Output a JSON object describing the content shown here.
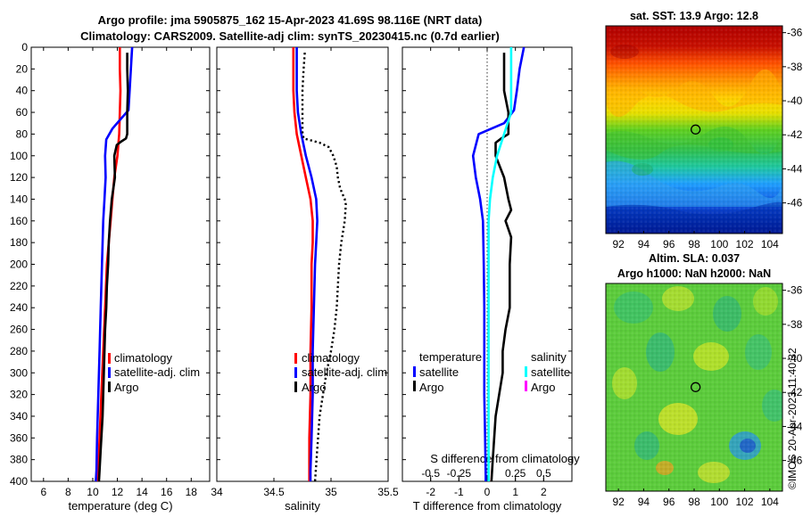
{
  "figure": {
    "title_line1": "Argo profile: jma 5905875_162 15-Apr-2023 41.69S 98.116E (NRT data)",
    "title_line2": "Climatology: CARS2009. Satellite-adj clim: synTS_20230415.nc (0.7d earlier)",
    "credit": "©IMOS 20-Apr-2023 11:40:32"
  },
  "chart_data": [
    {
      "id": "temperature",
      "type": "line",
      "xlabel": "temperature (deg C)",
      "ylabel": "",
      "xlim": [
        5,
        19.5
      ],
      "ylim": [
        400,
        0
      ],
      "xticks": [
        6,
        8,
        10,
        12,
        14,
        16,
        18
      ],
      "yticks": [
        0,
        20,
        40,
        60,
        80,
        100,
        120,
        140,
        160,
        180,
        200,
        220,
        240,
        260,
        280,
        300,
        320,
        340,
        360,
        380,
        400
      ],
      "series": [
        {
          "name": "climatology",
          "color": "#ff0000",
          "style": "solid",
          "x": [
            12.2,
            12.2,
            12.25,
            12.2,
            12.15,
            12.0,
            11.75,
            11.6,
            11.45,
            11.3,
            11.15,
            11.0,
            10.85,
            10.7,
            10.55,
            10.45,
            10.35
          ],
          "y": [
            0,
            20,
            40,
            60,
            80,
            100,
            120,
            140,
            160,
            180,
            200,
            240,
            280,
            320,
            360,
            390,
            400
          ]
        },
        {
          "name": "satellite-adj. clim",
          "color": "#0000ff",
          "style": "solid",
          "x": [
            13.2,
            13.1,
            13.0,
            12.9,
            11.6,
            11.1,
            11.0,
            11.05,
            10.95,
            10.85,
            10.75,
            10.65,
            10.55,
            10.45,
            10.35,
            10.3,
            10.25
          ],
          "y": [
            0,
            20,
            40,
            58,
            75,
            85,
            100,
            120,
            140,
            160,
            200,
            240,
            280,
            320,
            360,
            390,
            400
          ]
        },
        {
          "name": "Argo",
          "color": "#000000",
          "style": "solid",
          "x": [
            12.8,
            12.8,
            12.85,
            12.8,
            12.8,
            12.7,
            12.3,
            11.95,
            11.75,
            11.8,
            11.55,
            11.4,
            11.3,
            11.25,
            11.15,
            11.1,
            11.0,
            10.9,
            10.8,
            10.65,
            10.55,
            10.5
          ],
          "y": [
            5,
            20,
            40,
            60,
            80,
            84,
            87,
            90,
            100,
            120,
            140,
            160,
            180,
            200,
            220,
            240,
            260,
            300,
            340,
            370,
            390,
            400
          ]
        }
      ]
    },
    {
      "id": "salinity",
      "type": "line",
      "xlabel": "salinity",
      "ylabel": "",
      "xlim": [
        34,
        35.5
      ],
      "ylim": [
        400,
        0
      ],
      "xticks": [
        34,
        34.5,
        35,
        35.5
      ],
      "series": [
        {
          "name": "climatology",
          "color": "#ff0000",
          "style": "solid",
          "x": [
            34.67,
            34.67,
            34.67,
            34.68,
            34.7,
            34.74,
            34.78,
            34.82,
            34.84,
            34.84,
            34.83,
            34.83,
            34.82,
            34.82,
            34.81,
            34.81,
            34.81
          ],
          "y": [
            0,
            20,
            40,
            60,
            80,
            100,
            120,
            140,
            160,
            180,
            200,
            240,
            280,
            320,
            360,
            390,
            400
          ]
        },
        {
          "name": "satellite-adj. clim",
          "color": "#0000ff",
          "style": "solid",
          "x": [
            34.7,
            34.7,
            34.7,
            34.71,
            34.74,
            34.78,
            34.83,
            34.87,
            34.88,
            34.87,
            34.86,
            34.85,
            34.84,
            34.84,
            34.83,
            34.82,
            34.82
          ],
          "y": [
            0,
            20,
            40,
            60,
            80,
            100,
            120,
            140,
            160,
            180,
            200,
            240,
            280,
            320,
            360,
            390,
            400
          ]
        },
        {
          "name": "Argo",
          "color": "#000000",
          "style": "dotted",
          "x": [
            34.77,
            34.76,
            34.75,
            34.75,
            34.75,
            34.76,
            34.9,
            34.98,
            35.02,
            35.05,
            35.06,
            35.08,
            35.1,
            35.12,
            35.13,
            35.12,
            35.09,
            35.07,
            35.06,
            35.05,
            35.03,
            35.0,
            34.96,
            34.93,
            34.9,
            34.88,
            34.86
          ],
          "y": [
            5,
            20,
            40,
            60,
            78,
            84,
            88,
            92,
            100,
            110,
            120,
            130,
            135,
            140,
            145,
            160,
            180,
            200,
            220,
            240,
            260,
            280,
            300,
            320,
            340,
            370,
            400
          ]
        }
      ]
    },
    {
      "id": "difference",
      "type": "line",
      "xlabel": "T difference from climatology",
      "xlabel_top": "S difference from climatology",
      "ylabel": "",
      "xlim": [
        -3,
        3
      ],
      "ylim": [
        400,
        0
      ],
      "xticks": [
        -2,
        -1,
        0,
        1,
        2
      ],
      "xticks_top": [
        "-0.5",
        "-0.25",
        "0",
        "0.25",
        "0.5"
      ],
      "xticks_top_values": [
        -2,
        -1,
        0,
        1,
        2
      ],
      "series": [
        {
          "name": "T satellite",
          "color": "#0000ff",
          "style": "solid",
          "x": [
            1.3,
            1.15,
            1.05,
            0.95,
            0.6,
            -0.3,
            -0.5,
            -0.4,
            -0.25,
            -0.15,
            -0.12,
            -0.1,
            -0.1,
            -0.1,
            -0.08,
            -0.06,
            -0.05,
            -0.05
          ],
          "y": [
            0,
            20,
            40,
            58,
            70,
            80,
            100,
            120,
            140,
            160,
            200,
            240,
            280,
            320,
            350,
            380,
            395,
            400
          ]
        },
        {
          "name": "T Argo",
          "color": "#000000",
          "style": "solid",
          "x": [
            0.6,
            0.6,
            0.6,
            0.75,
            0.75,
            0.5,
            0.3,
            0.3,
            0.6,
            0.75,
            0.85,
            0.65,
            0.85,
            0.8,
            0.8,
            0.65,
            0.55,
            0.55,
            0.3,
            0.2,
            0.15
          ],
          "y": [
            5,
            20,
            40,
            60,
            80,
            84,
            88,
            100,
            120,
            140,
            150,
            160,
            175,
            200,
            240,
            260,
            280,
            300,
            340,
            380,
            400
          ]
        },
        {
          "name": "S satellite",
          "color": "#00ffff",
          "style": "solid",
          "x": [
            0.85,
            0.85,
            0.85,
            0.85,
            0.6,
            0.35,
            0.2,
            0.1,
            0.05,
            0.05,
            0.05,
            0.05,
            0.05,
            0.05,
            0.05,
            0.05
          ],
          "y": [
            0,
            20,
            40,
            60,
            80,
            100,
            120,
            140,
            160,
            200,
            240,
            280,
            320,
            360,
            390,
            400
          ]
        },
        {
          "name": "S Argo",
          "color": "#ff00ff",
          "style": "solid",
          "x": [],
          "y": []
        }
      ]
    }
  ],
  "legends": {
    "temperature": [
      "climatology",
      "satellite-adj. clim",
      "Argo"
    ],
    "salinity": [
      "climatology",
      "satellite-adj. clim",
      "Argo"
    ],
    "difference": {
      "header_left": "temperature",
      "header_right": "salinity",
      "left": [
        "satellite",
        "Argo"
      ],
      "right": [
        "satellite",
        "Argo"
      ]
    }
  },
  "maps": {
    "sst": {
      "title": "sat. SST: 13.9 Argo: 12.8",
      "lon_ticks": [
        "92",
        "94",
        "96",
        "98",
        "100",
        "102",
        "104"
      ],
      "lat_ticks": [
        "-36",
        "-38",
        "-40",
        "-42",
        "-44",
        "-46"
      ],
      "lon_range": [
        91,
        105
      ],
      "lat_range": [
        -47.8,
        -35.6
      ],
      "marker": {
        "lon": 98.116,
        "lat": -41.69
      }
    },
    "sla": {
      "title_line1": "Altim. SLA: 0.037",
      "title_line2": "Argo h1000: NaN h2000: NaN",
      "lon_ticks": [
        "92",
        "94",
        "96",
        "98",
        "100",
        "102",
        "104"
      ],
      "lat_ticks": [
        "-36",
        "-38",
        "-40",
        "-42",
        "-44",
        "-46"
      ],
      "lon_range": [
        91,
        105
      ],
      "lat_range": [
        -47.8,
        -35.6
      ],
      "marker": {
        "lon": 98.116,
        "lat": -41.69
      }
    }
  }
}
